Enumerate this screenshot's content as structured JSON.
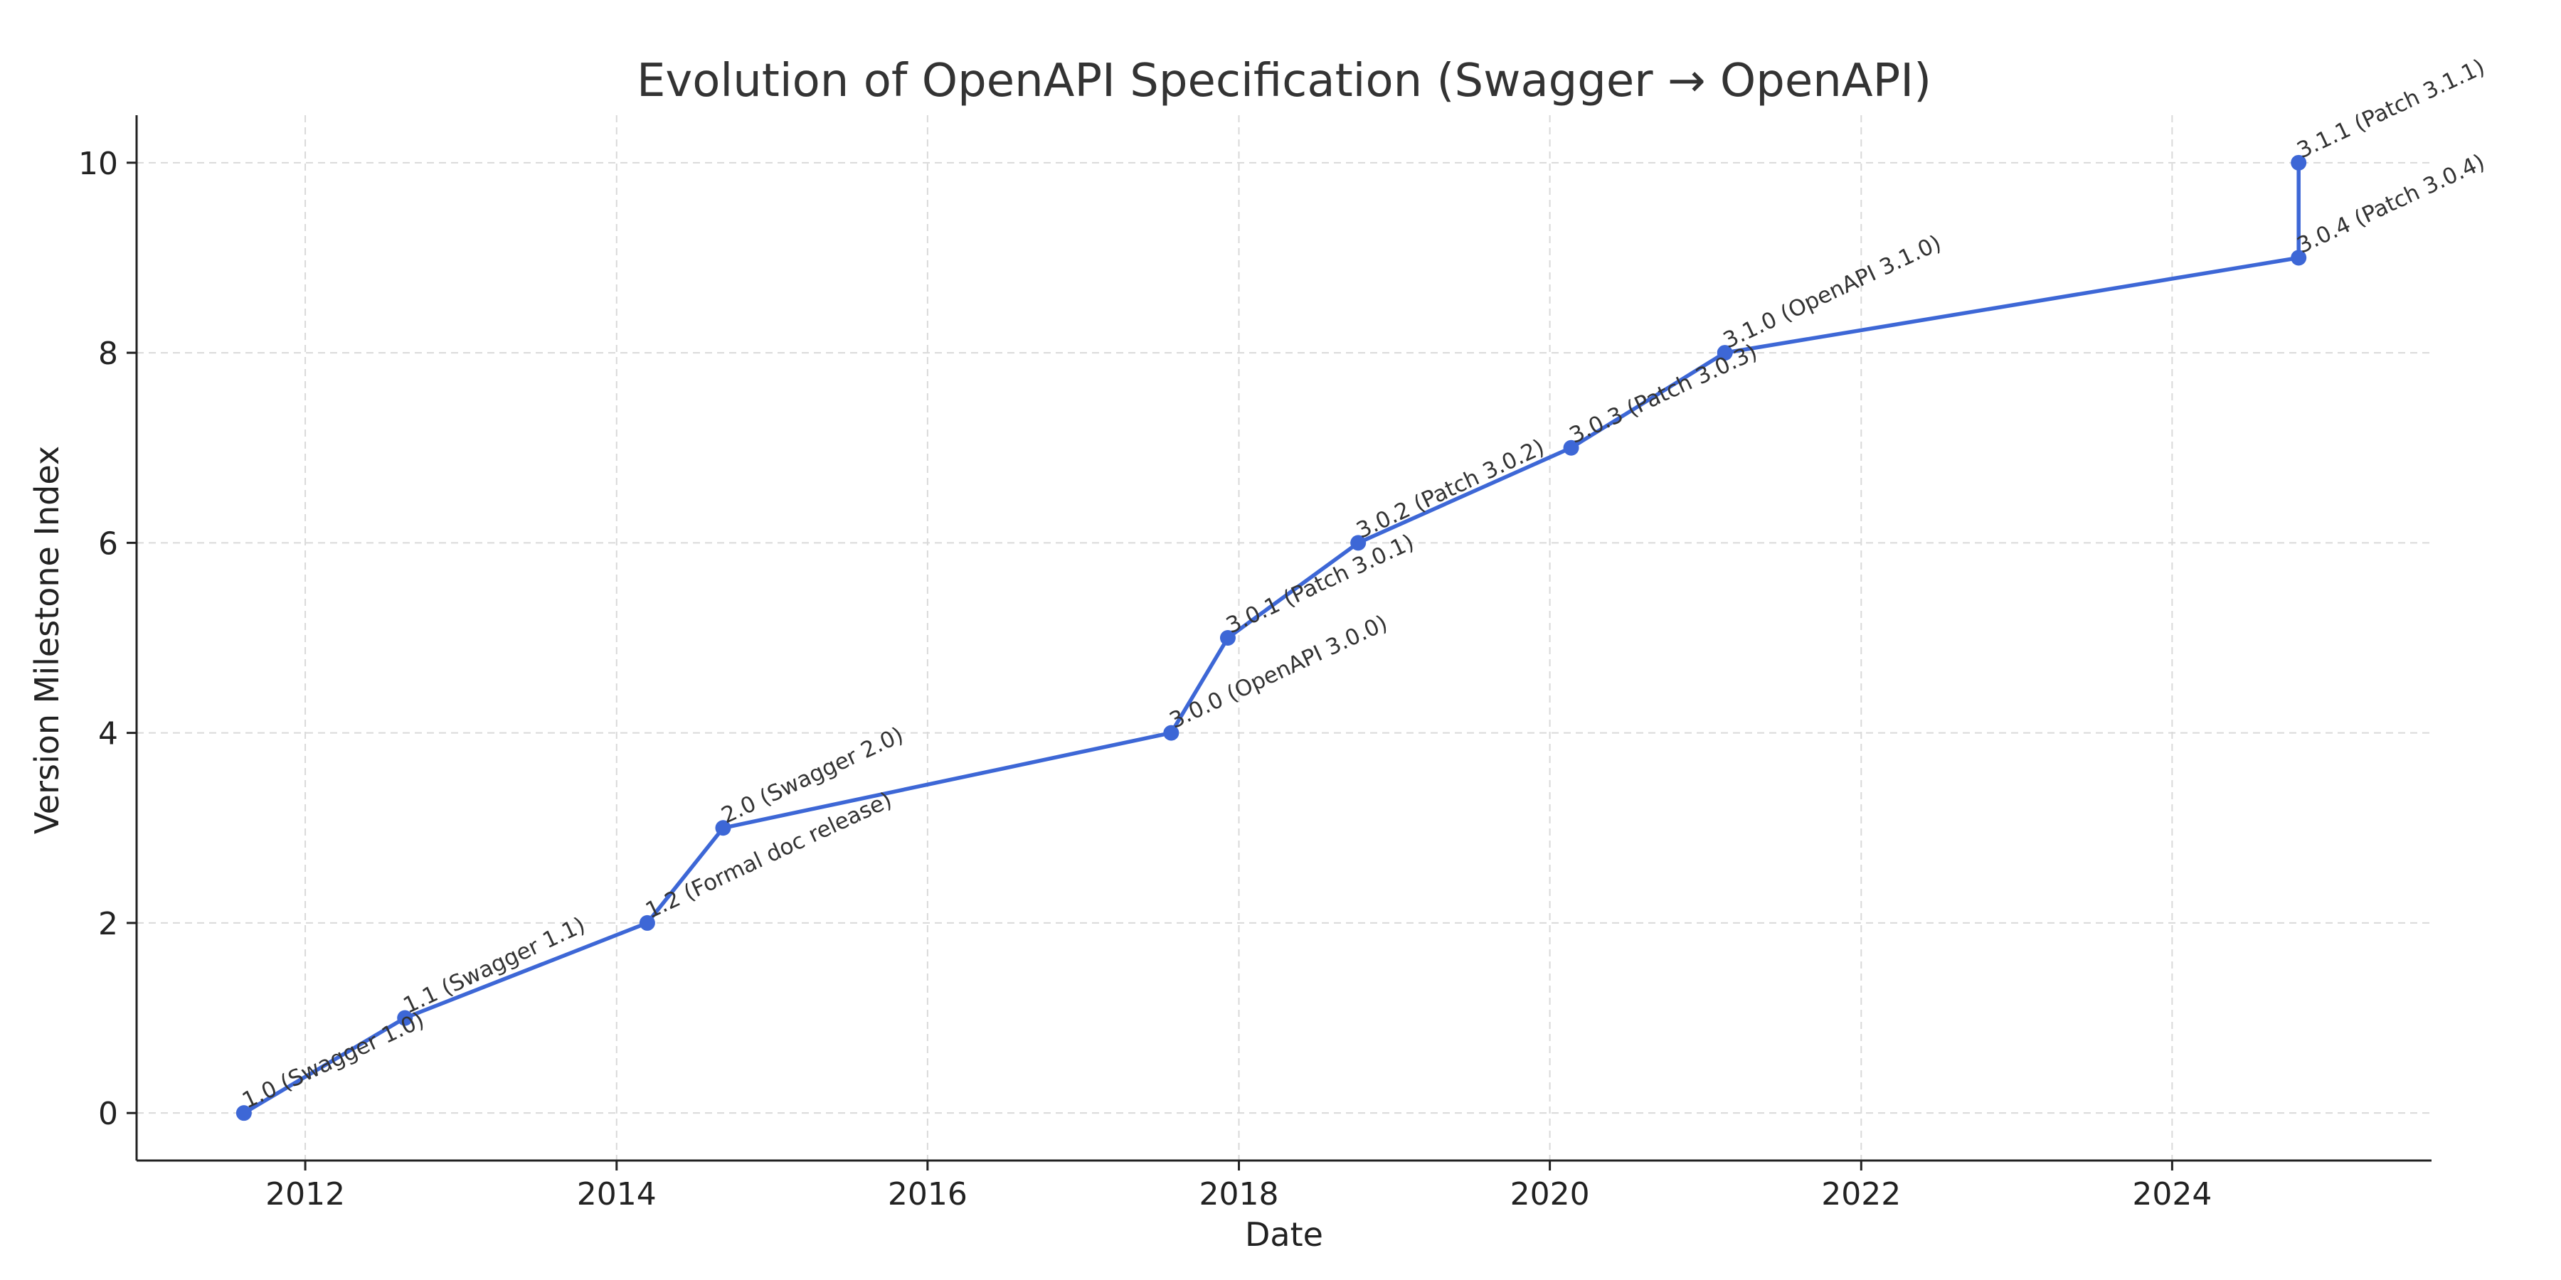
{
  "chart_data": {
    "type": "line",
    "title": "Evolution of OpenAPI Specification (Swagger → OpenAPI)",
    "xlabel": "Date",
    "ylabel": "Version Milestone Index",
    "x_axis_type": "date",
    "xlim": [
      "2010-12-01",
      "2025-09-01"
    ],
    "ylim": [
      -0.5,
      10.5
    ],
    "x_ticks": [
      "2012",
      "2014",
      "2016",
      "2018",
      "2020",
      "2022",
      "2024"
    ],
    "y_ticks": [
      0,
      2,
      4,
      6,
      8,
      10
    ],
    "grid": true,
    "legend": false,
    "color": "#3d67d6",
    "points": [
      {
        "x": "2011-08-10",
        "y": 0,
        "label": "1.0 (Swagger 1.0)"
      },
      {
        "x": "2012-08-22",
        "y": 1,
        "label": "1.1 (Swagger 1.1)"
      },
      {
        "x": "2014-03-14",
        "y": 2,
        "label": "1.2 (Formal doc release)"
      },
      {
        "x": "2014-09-08",
        "y": 3,
        "label": "2.0 (Swagger 2.0)"
      },
      {
        "x": "2017-07-26",
        "y": 4,
        "label": "3.0.0 (OpenAPI 3.0.0)"
      },
      {
        "x": "2017-12-06",
        "y": 5,
        "label": "3.0.1 (Patch 3.0.1)"
      },
      {
        "x": "2018-10-08",
        "y": 6,
        "label": "3.0.2 (Patch 3.0.2)"
      },
      {
        "x": "2020-02-20",
        "y": 7,
        "label": "3.0.3 (Patch 3.0.3)"
      },
      {
        "x": "2021-02-15",
        "y": 8,
        "label": "3.1.0 (OpenAPI 3.1.0)"
      },
      {
        "x": "2024-10-24",
        "y": 9,
        "label": "3.0.4 (Patch 3.0.4)"
      },
      {
        "x": "2024-10-24",
        "y": 10,
        "label": "3.1.1 (Patch 3.1.1)"
      }
    ]
  }
}
